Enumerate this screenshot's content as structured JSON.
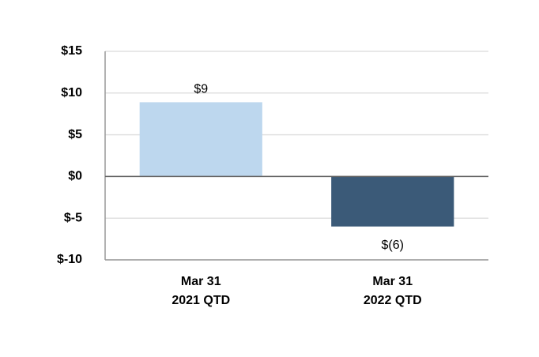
{
  "chart_data": {
    "type": "bar",
    "categories": [
      "Mar 31\n2021 QTD",
      "Mar 31\n2022 QTD"
    ],
    "values": [
      8.9,
      -6
    ],
    "value_labels": [
      "$9",
      "$(6)"
    ],
    "colors": [
      "#bdd7ee",
      "#3b5a78"
    ],
    "ylim": [
      -10,
      15
    ],
    "yticks": [
      {
        "value": -10,
        "label": "$-10"
      },
      {
        "value": -5,
        "label": "$-5"
      },
      {
        "value": 0,
        "label": "$0"
      },
      {
        "value": 5,
        "label": "$5"
      },
      {
        "value": 10,
        "label": "$10"
      },
      {
        "value": 15,
        "label": "$15"
      }
    ],
    "grid": true
  }
}
